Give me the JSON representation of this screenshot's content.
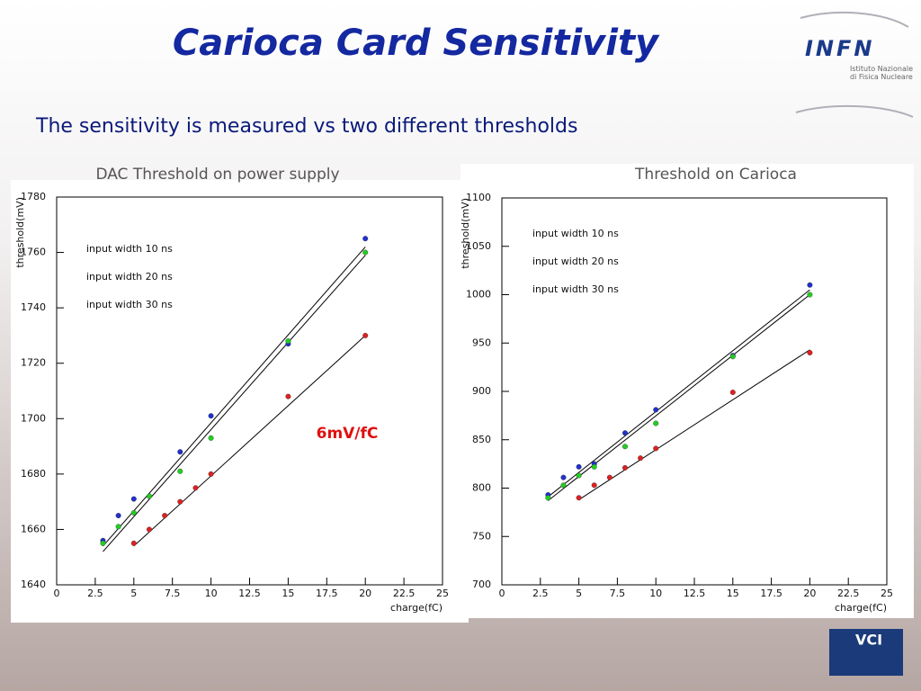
{
  "slide": {
    "title": "Carioca Card Sensitivity",
    "subtitle": "The sensitivity is measured vs two different thresholds",
    "logos": {
      "infn": "INFN",
      "infn_caption": "Istituto Nazionale di Fisica Nucleare",
      "vci": "VCI"
    }
  },
  "chart_data": [
    {
      "type": "scatter",
      "title": "DAC Threshold on power supply",
      "x_label": "charge(fC)",
      "y_label": "threshold(mV)",
      "annotation": "6mV/fC",
      "xlim": [
        0,
        25
      ],
      "xticks": [
        0,
        2.5,
        5,
        7.5,
        10,
        12.5,
        15,
        17.5,
        20,
        22.5,
        25
      ],
      "ylim": [
        1640,
        1780
      ],
      "yticks": [
        1640,
        1660,
        1680,
        1700,
        1720,
        1740,
        1760,
        1780
      ],
      "grid": false,
      "series": [
        {
          "name": "input width 10 ns",
          "color": "#e02020",
          "x": [
            5,
            6,
            7,
            8,
            9,
            10,
            15,
            20
          ],
          "values": [
            1655,
            1660,
            1665,
            1670,
            1675,
            1680,
            1708,
            1730
          ]
        },
        {
          "name": "input width 20 ns",
          "color": "#2030d0",
          "x": [
            3,
            4,
            5,
            8,
            10,
            15,
            20
          ],
          "values": [
            1656,
            1665,
            1671,
            1688,
            1701,
            1727,
            1765
          ]
        },
        {
          "name": "input width 30 ns",
          "color": "#20d020",
          "x": [
            3,
            4,
            5,
            6,
            8,
            10,
            15,
            20
          ],
          "values": [
            1655,
            1661,
            1666,
            1672,
            1681,
            1693,
            1728,
            1760
          ]
        }
      ],
      "fits": [
        {
          "x": [
            5,
            20
          ],
          "values": [
            1654,
            1730
          ]
        },
        {
          "x": [
            3,
            20
          ],
          "values": [
            1654,
            1762
          ]
        },
        {
          "x": [
            3,
            20
          ],
          "values": [
            1652,
            1759
          ]
        }
      ]
    },
    {
      "type": "scatter",
      "title": "Threshold on Carioca",
      "x_label": "charge(fC)",
      "y_label": "threshold(mV)",
      "xlim": [
        0,
        25
      ],
      "xticks": [
        0,
        2.5,
        5,
        7.5,
        10,
        12.5,
        15,
        17.5,
        20,
        22.5,
        25
      ],
      "ylim": [
        700,
        1100
      ],
      "yticks": [
        700,
        750,
        800,
        850,
        900,
        950,
        1000,
        1050,
        1100
      ],
      "grid": false,
      "series": [
        {
          "name": "input width 10 ns",
          "color": "#e02020",
          "x": [
            5,
            6,
            7,
            8,
            9,
            10,
            15,
            20
          ],
          "values": [
            790,
            803,
            811,
            821,
            831,
            841,
            899,
            940
          ]
        },
        {
          "name": "input width 20 ns",
          "color": "#2030d0",
          "x": [
            3,
            4,
            5,
            6,
            8,
            10,
            15,
            20
          ],
          "values": [
            793,
            811,
            822,
            825,
            857,
            881,
            937,
            1010
          ]
        },
        {
          "name": "input width 30 ns",
          "color": "#20d020",
          "x": [
            3,
            4,
            5,
            6,
            8,
            10,
            15,
            20
          ],
          "values": [
            790,
            803,
            813,
            822,
            843,
            867,
            936,
            1000
          ]
        }
      ],
      "fits": [
        {
          "x": [
            5,
            20
          ],
          "values": [
            788,
            943
          ]
        },
        {
          "x": [
            3,
            20
          ],
          "values": [
            791,
            1005
          ]
        },
        {
          "x": [
            3,
            20
          ],
          "values": [
            787,
            1000
          ]
        }
      ]
    }
  ]
}
